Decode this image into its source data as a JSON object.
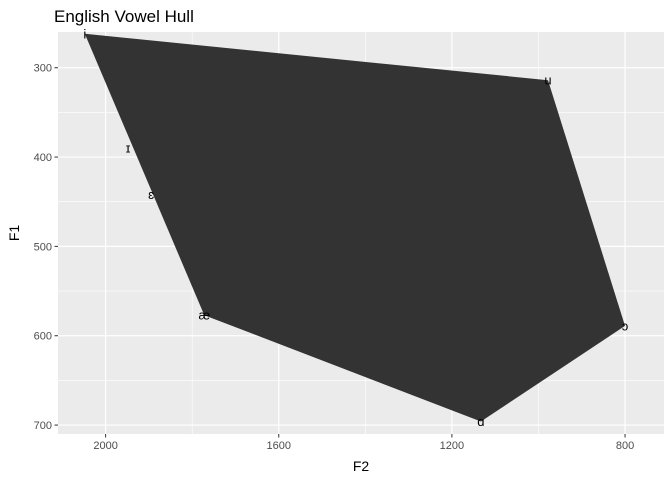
{
  "chart_data": {
    "type": "polygon",
    "title": "English Vowel Hull",
    "xlabel": "F2",
    "ylabel": "F1",
    "x_reversed": true,
    "y_reversed": true,
    "xlim": [
      2110,
      710
    ],
    "ylim": [
      260,
      710
    ],
    "x_ticks": [
      2000,
      1600,
      1200,
      800
    ],
    "y_ticks": [
      300,
      400,
      500,
      600,
      700
    ],
    "x_tick_labels": [
      "2000",
      "1600",
      "1200",
      "800"
    ],
    "y_tick_labels": [
      "300",
      "400",
      "500",
      "600",
      "700"
    ],
    "hull": [
      {
        "label": "i",
        "x": 2048,
        "y": 262
      },
      {
        "label": "u",
        "x": 978,
        "y": 314
      },
      {
        "label": "ɔ",
        "x": 800,
        "y": 589
      },
      {
        "label": "ɑ",
        "x": 1133,
        "y": 696
      },
      {
        "label": "æ",
        "x": 1772,
        "y": 577
      }
    ],
    "points": [
      {
        "label": "i",
        "x": 2048,
        "y": 262
      },
      {
        "label": "ɪ",
        "x": 1948,
        "y": 390
      },
      {
        "label": "ɛ",
        "x": 1895,
        "y": 442
      },
      {
        "label": "æ",
        "x": 1772,
        "y": 577
      },
      {
        "label": "ɑ",
        "x": 1133,
        "y": 696
      },
      {
        "label": "ɔ",
        "x": 800,
        "y": 589
      },
      {
        "label": "u",
        "x": 978,
        "y": 314
      }
    ],
    "fill_color": "#333333",
    "panel_color": "#ebebeb",
    "grid": true
  }
}
